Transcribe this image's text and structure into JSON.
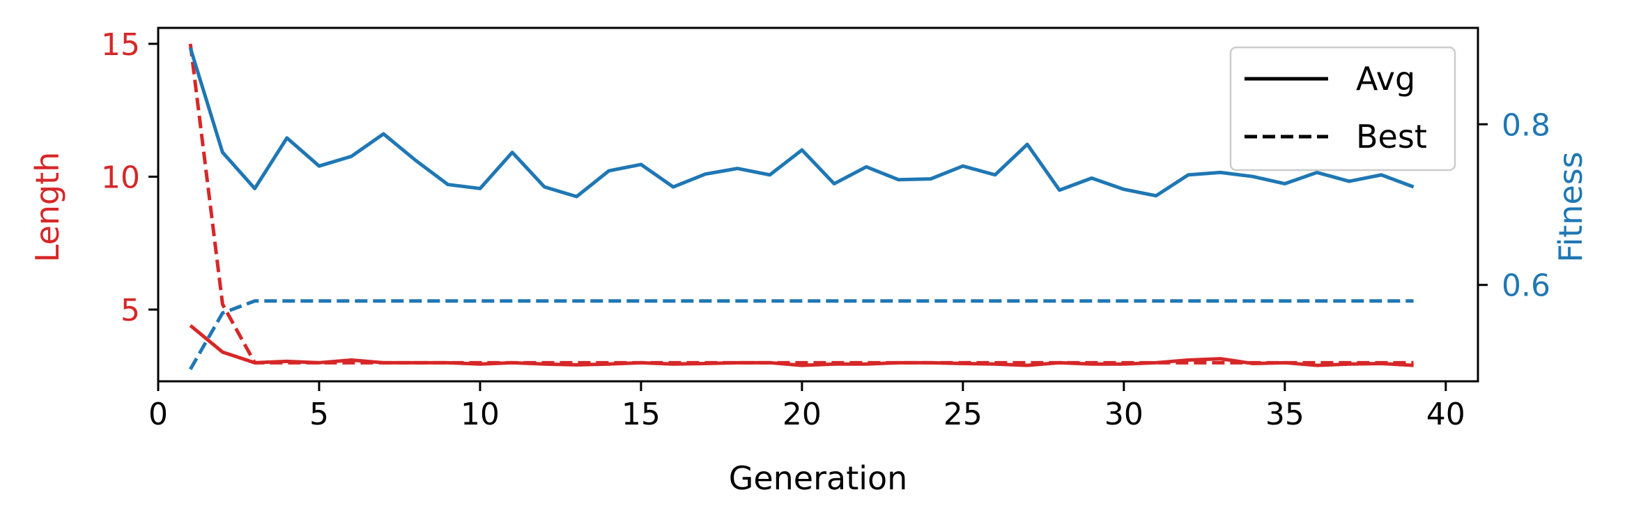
{
  "chart_data": {
    "type": "line",
    "xlabel": "Generation",
    "ylabel_left": "Length",
    "ylabel_right": "Fitness",
    "xlim": [
      0,
      41
    ],
    "ylim_left": [
      2.3,
      15.6
    ],
    "ylim_right": [
      0.48,
      0.92
    ],
    "xticks": [
      0,
      5,
      10,
      15,
      20,
      25,
      30,
      35,
      40
    ],
    "yticks_left": [
      5,
      10,
      15
    ],
    "yticks_right": [
      0.6,
      0.8
    ],
    "ytick_labels_right": [
      "0.6",
      "0.8"
    ],
    "legend": {
      "position": "top-right",
      "entries": [
        {
          "label": "Avg",
          "style": "solid"
        },
        {
          "label": "Best",
          "style": "dashed"
        }
      ]
    },
    "colors": {
      "length": "#d62728",
      "fitness": "#1f77b4"
    },
    "x": [
      1,
      2,
      3,
      4,
      5,
      6,
      7,
      8,
      9,
      10,
      11,
      12,
      13,
      14,
      15,
      16,
      17,
      18,
      19,
      20,
      21,
      22,
      23,
      24,
      25,
      26,
      27,
      28,
      29,
      30,
      31,
      32,
      33,
      34,
      35,
      36,
      37,
      38,
      39
    ],
    "series": [
      {
        "name": "Avg",
        "axis": "left",
        "color": "#d62728",
        "dash": "solid",
        "values": [
          4.4,
          3.4,
          3.0,
          3.05,
          3.0,
          3.1,
          3.0,
          3.0,
          3.0,
          2.95,
          3.0,
          2.95,
          2.92,
          2.95,
          3.0,
          2.95,
          2.97,
          3.0,
          3.0,
          2.9,
          2.95,
          2.95,
          3.0,
          3.0,
          2.97,
          2.95,
          2.9,
          3.0,
          2.95,
          2.95,
          3.0,
          3.1,
          3.15,
          2.97,
          3.0,
          2.9,
          2.95,
          2.97,
          2.9
        ]
      },
      {
        "name": "Best",
        "axis": "left",
        "color": "#d62728",
        "dash": "dashed",
        "values": [
          15.0,
          5.2,
          3.0,
          3.0,
          3.0,
          3.0,
          3.0,
          3.0,
          3.0,
          3.0,
          3.0,
          3.0,
          3.0,
          3.0,
          3.0,
          3.0,
          3.0,
          3.0,
          3.0,
          3.0,
          3.0,
          3.0,
          3.0,
          3.0,
          3.0,
          3.0,
          3.0,
          3.0,
          3.0,
          3.0,
          3.0,
          3.0,
          3.0,
          3.0,
          3.0,
          3.0,
          3.0,
          3.0,
          3.0
        ]
      },
      {
        "name": "Avg",
        "axis": "right",
        "color": "#1f77b4",
        "dash": "solid",
        "values": [
          0.895,
          0.765,
          0.72,
          0.783,
          0.748,
          0.76,
          0.788,
          0.755,
          0.725,
          0.72,
          0.765,
          0.722,
          0.71,
          0.742,
          0.75,
          0.722,
          0.738,
          0.745,
          0.737,
          0.768,
          0.726,
          0.747,
          0.731,
          0.732,
          0.748,
          0.737,
          0.775,
          0.718,
          0.733,
          0.719,
          0.711,
          0.737,
          0.74,
          0.735,
          0.726,
          0.74,
          0.729,
          0.737,
          0.722
        ]
      },
      {
        "name": "Best",
        "axis": "right",
        "color": "#1f77b4",
        "dash": "dashed",
        "values": [
          0.495,
          0.565,
          0.58,
          0.58,
          0.58,
          0.58,
          0.58,
          0.58,
          0.58,
          0.58,
          0.58,
          0.58,
          0.58,
          0.58,
          0.58,
          0.58,
          0.58,
          0.58,
          0.58,
          0.58,
          0.58,
          0.58,
          0.58,
          0.58,
          0.58,
          0.58,
          0.58,
          0.58,
          0.58,
          0.58,
          0.58,
          0.58,
          0.58,
          0.58,
          0.58,
          0.58,
          0.58,
          0.58,
          0.58
        ]
      }
    ]
  }
}
